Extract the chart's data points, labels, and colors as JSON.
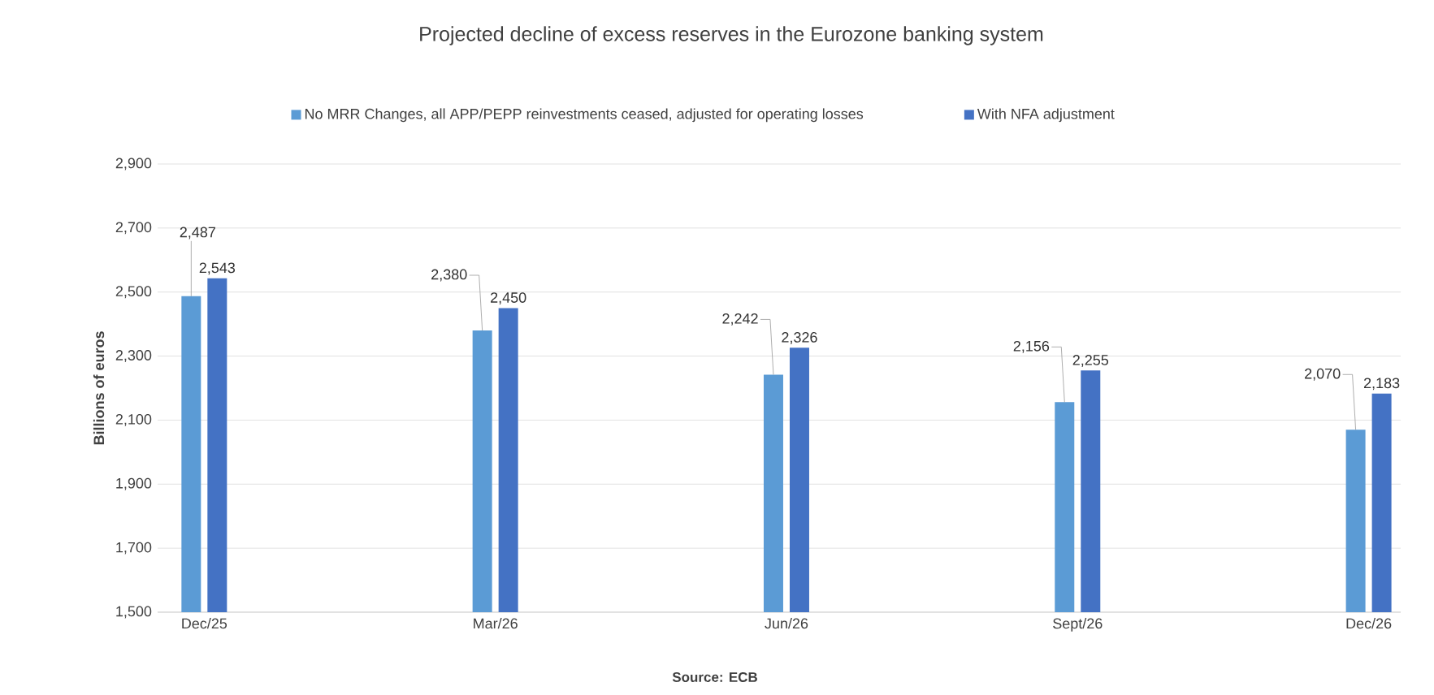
{
  "chart_data": {
    "type": "bar",
    "title": "Projected decline of excess reserves in the Eurozone banking system",
    "ylabel": "Billions of euros",
    "annotations": [
      "Source: ECB"
    ],
    "categories": [
      "Dec/25",
      "Mar/26",
      "Jun/26",
      "Sept/26",
      "Dec/26"
    ],
    "series": [
      {
        "name": "No MRR Changes, all APP/PEPP reinvestments ceased, adjusted for operating losses",
        "color": "#5b9bd5",
        "values": [
          2487,
          2380,
          2242,
          2156,
          2070
        ],
        "value_labels": [
          "2,487",
          "2,380",
          "2,242",
          "2,156",
          "2,070"
        ]
      },
      {
        "name": "With NFA adjustment",
        "color": "#4472c4",
        "values": [
          2543,
          2450,
          2326,
          2255,
          2183
        ],
        "value_labels": [
          "2,543",
          "2,450",
          "2,326",
          "2,255",
          "2,183"
        ]
      }
    ],
    "ylim": [
      1500,
      2900
    ],
    "yticks": [
      {
        "value": 1500,
        "label": "1,500"
      },
      {
        "value": 1700,
        "label": "1,700"
      },
      {
        "value": 1900,
        "label": "1,900"
      },
      {
        "value": 2100,
        "label": "2,100"
      },
      {
        "value": 2300,
        "label": "2,300"
      },
      {
        "value": 2500,
        "label": "2,500"
      },
      {
        "value": 2700,
        "label": "2,700"
      },
      {
        "value": 2900,
        "label": "2,900"
      }
    ],
    "grid": "y",
    "legend": "top"
  }
}
